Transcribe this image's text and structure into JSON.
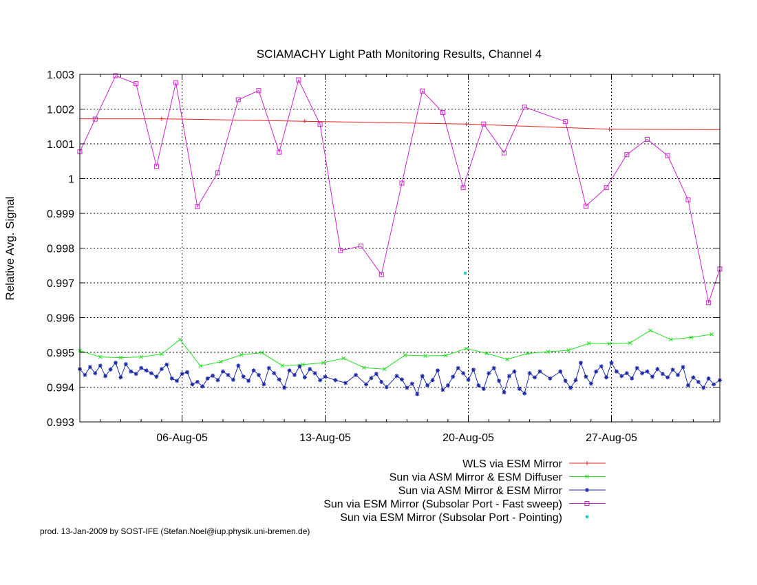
{
  "chart_data": {
    "type": "line",
    "title": "SCIAMACHY Light Path Monitoring Results, Channel 4",
    "xlabel": "",
    "ylabel": "Relative Avg. Signal",
    "x_unit": "day of 2005 (1 = 01-Aug-05)",
    "xlim": [
      1.0,
      32.3
    ],
    "ylim": [
      0.993,
      1.003
    ],
    "y_ticks": [
      "0.993",
      "0.994",
      "0.995",
      "0.996",
      "0.997",
      "0.998",
      "0.999",
      "1",
      "1.001",
      "1.002",
      "1.003"
    ],
    "x_ticks": [
      {
        "x": 6,
        "label": "06-Aug-05"
      },
      {
        "x": 13,
        "label": "13-Aug-05"
      },
      {
        "x": 20,
        "label": "20-Aug-05"
      },
      {
        "x": 27,
        "label": "27-Aug-05"
      }
    ],
    "grid": true,
    "legend_position": "bottom-right",
    "series": [
      {
        "name": "WLS via ESM Mirror",
        "color": "#e8221c",
        "marker": "plus",
        "x": [
          1.0,
          5.0,
          12.0,
          19.9,
          26.9,
          32.3
        ],
        "y": [
          1.00172,
          1.00172,
          1.00165,
          1.00157,
          1.00142,
          1.00141
        ],
        "marker_x": [
          5.0,
          12.0,
          19.9,
          26.9
        ],
        "marker_y": [
          1.00172,
          1.00165,
          1.00157,
          1.00142
        ]
      },
      {
        "name": "Sun via ASM Mirror & ESM Diffuser",
        "color": "#22dd22",
        "marker": "x",
        "x": [
          1.0,
          2.0,
          3.0,
          4.0,
          5.0,
          5.9,
          6.9,
          7.9,
          8.9,
          9.9,
          10.9,
          11.9,
          12.9,
          13.9,
          14.9,
          15.9,
          16.9,
          17.9,
          18.9,
          19.9,
          20.9,
          21.9,
          22.9,
          23.9,
          24.9,
          25.9,
          26.9,
          27.9,
          28.9,
          29.9,
          30.9,
          31.9
        ],
        "y": [
          0.99505,
          0.99487,
          0.99485,
          0.99487,
          0.99495,
          0.99537,
          0.99461,
          0.99473,
          0.99493,
          0.99499,
          0.99462,
          0.99465,
          0.9947,
          0.99483,
          0.99456,
          0.99452,
          0.99492,
          0.9949,
          0.99491,
          0.99511,
          0.99497,
          0.9948,
          0.99497,
          0.99502,
          0.99506,
          0.99526,
          0.99525,
          0.99527,
          0.99563,
          0.99537,
          0.99543,
          0.99552
        ]
      },
      {
        "name": "Sun via ASM Mirror & ESM Mirror",
        "color": "#1c2aa8",
        "marker": "star",
        "x": [
          1.0,
          1.25,
          1.5,
          1.75,
          2.0,
          2.25,
          2.5,
          2.75,
          3.0,
          3.25,
          3.5,
          3.75,
          4.0,
          4.25,
          4.5,
          4.75,
          5.0,
          5.25,
          5.5,
          5.75,
          6.0,
          6.25,
          6.5,
          6.75,
          7.0,
          7.25,
          7.5,
          7.75,
          8.0,
          8.25,
          8.5,
          8.75,
          9.0,
          9.25,
          9.5,
          9.75,
          10.0,
          10.25,
          10.5,
          10.75,
          11.0,
          11.25,
          11.5,
          11.75,
          12.0,
          12.25,
          12.5,
          12.75,
          13.0,
          13.5,
          14.0,
          14.5,
          15.0,
          15.25,
          15.5,
          15.75,
          16.0,
          16.5,
          16.75,
          17.0,
          17.25,
          17.5,
          17.75,
          18.0,
          18.25,
          18.5,
          18.75,
          19.0,
          19.25,
          19.5,
          19.75,
          20.0,
          20.25,
          20.5,
          20.75,
          21.0,
          21.25,
          21.5,
          21.75,
          22.0,
          22.25,
          22.5,
          22.75,
          23.0,
          23.25,
          23.5,
          24.0,
          24.5,
          24.75,
          25.0,
          25.25,
          25.5,
          25.75,
          26.0,
          26.25,
          26.5,
          26.75,
          27.0,
          27.25,
          27.5,
          27.75,
          28.0,
          28.25,
          28.5,
          28.75,
          29.0,
          29.25,
          29.5,
          29.75,
          30.0,
          30.25,
          30.5,
          30.75,
          31.0,
          31.25,
          31.5,
          31.75,
          32.0,
          32.3
        ],
        "y": [
          0.99452,
          0.99435,
          0.99458,
          0.9944,
          0.99462,
          0.99432,
          0.99451,
          0.9947,
          0.99428,
          0.99466,
          0.99445,
          0.99438,
          0.99455,
          0.99448,
          0.9944,
          0.9943,
          0.99452,
          0.99465,
          0.99425,
          0.99418,
          0.99438,
          0.99443,
          0.99408,
          0.99415,
          0.99402,
          0.99425,
          0.99433,
          0.9942,
          0.99445,
          0.99435,
          0.99421,
          0.99462,
          0.9943,
          0.99418,
          0.99448,
          0.99435,
          0.99408,
          0.99455,
          0.9944,
          0.99422,
          0.99398,
          0.99448,
          0.99435,
          0.9946,
          0.99428,
          0.99452,
          0.9944,
          0.9942,
          0.9943,
          0.9942,
          0.99412,
          0.99435,
          0.99408,
          0.99426,
          0.99438,
          0.99415,
          0.994,
          0.99432,
          0.99422,
          0.99398,
          0.9941,
          0.9938,
          0.99432,
          0.99405,
          0.9942,
          0.99448,
          0.99392,
          0.99405,
          0.9943,
          0.99455,
          0.9944,
          0.99421,
          0.9945,
          0.99405,
          0.99395,
          0.9944,
          0.99455,
          0.99418,
          0.99385,
          0.99432,
          0.99445,
          0.99395,
          0.99382,
          0.9944,
          0.99428,
          0.99445,
          0.99425,
          0.99445,
          0.99418,
          0.99398,
          0.9942,
          0.9947,
          0.9943,
          0.9941,
          0.99445,
          0.9946,
          0.99428,
          0.9947,
          0.99445,
          0.99432,
          0.9944,
          0.99425,
          0.99455,
          0.9944,
          0.99445,
          0.9943,
          0.99452,
          0.99438,
          0.99428,
          0.9945,
          0.99435,
          0.99458,
          0.99405,
          0.99428,
          0.99415,
          0.99398,
          0.99425,
          0.99408,
          0.9942
        ]
      },
      {
        "name": "Sun via ESM Mirror (Subsolar Port - Fast sweep)",
        "color": "#cc22cc",
        "marker": "square",
        "x": [
          1.0,
          1.75,
          2.75,
          3.75,
          4.75,
          5.7,
          6.75,
          7.75,
          8.75,
          9.75,
          10.75,
          11.7,
          12.75,
          13.75,
          14.75,
          15.75,
          16.75,
          17.75,
          18.75,
          19.75,
          20.75,
          21.75,
          22.75,
          24.75,
          25.75,
          26.75,
          27.75,
          28.75,
          29.75,
          30.75,
          31.75,
          32.3
        ],
        "y": [
          1.00077,
          1.00171,
          1.00296,
          1.00273,
          1.00035,
          1.00276,
          0.99919,
          1.00017,
          1.00227,
          1.00253,
          1.00076,
          1.00284,
          1.00156,
          0.99793,
          0.99806,
          0.99724,
          0.99987,
          1.00252,
          1.0019,
          0.99974,
          1.00157,
          1.00074,
          1.00206,
          1.00164,
          0.99921,
          0.99974,
          1.00069,
          1.00113,
          1.00066,
          0.99939,
          0.99643,
          0.9974
        ]
      },
      {
        "name": "Sun via ESM Mirror (Subsolar Port - Pointing)",
        "color": "#22cccc",
        "marker": "dot",
        "x": [
          19.85
        ],
        "y": [
          0.99728
        ]
      }
    ],
    "footer": "prod. 13-Jan-2009 by SOST-IFE (Stefan.Noel@iup.physik.uni-bremen.de)"
  }
}
